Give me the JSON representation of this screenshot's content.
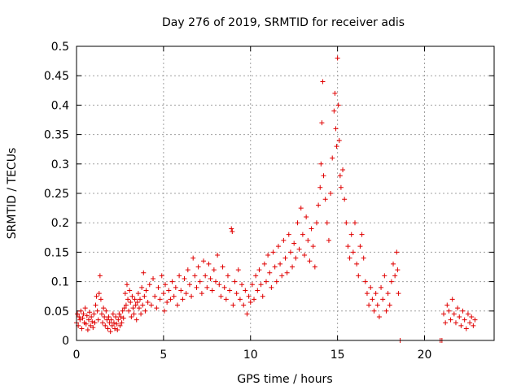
{
  "chart_data": {
    "type": "scatter",
    "title": "Day 276 of 2019, SRMTID for receiver adis",
    "xlabel": "GPS time / hours",
    "ylabel": "SRMTID / TECUs",
    "xlim": [
      0,
      24
    ],
    "ylim": [
      0,
      0.5
    ],
    "x_ticks": [
      0,
      5,
      10,
      15,
      20
    ],
    "x_tick_labels": [
      "0",
      "5",
      "10",
      "15",
      "20"
    ],
    "y_ticks": [
      0,
      0.05,
      0.1,
      0.15,
      0.2,
      0.25,
      0.3,
      0.35,
      0.4,
      0.45,
      0.5
    ],
    "y_tick_labels": [
      "0",
      "0.05",
      "0.1",
      "0.15",
      "0.2",
      "0.25",
      "0.3",
      "0.35",
      "0.4",
      "0.45",
      "0.5"
    ],
    "grid": true,
    "marker": "+",
    "color": "#e00000",
    "series": [
      {
        "name": "",
        "points": [
          [
            0.0,
            0.03
          ],
          [
            0.05,
            0.045
          ],
          [
            0.1,
            0.025
          ],
          [
            0.15,
            0.04
          ],
          [
            0.2,
            0.035
          ],
          [
            0.25,
            0.05
          ],
          [
            0.3,
            0.02
          ],
          [
            0.35,
            0.038
          ],
          [
            0.4,
            0.045
          ],
          [
            0.45,
            0.03
          ],
          [
            0.5,
            0.055
          ],
          [
            0.55,
            0.028
          ],
          [
            0.6,
            0.042
          ],
          [
            0.65,
            0.018
          ],
          [
            0.7,
            0.035
          ],
          [
            0.75,
            0.048
          ],
          [
            0.8,
            0.025
          ],
          [
            0.85,
            0.04
          ],
          [
            0.9,
            0.032
          ],
          [
            0.95,
            0.022
          ],
          [
            1.0,
            0.045
          ],
          [
            1.05,
            0.03
          ],
          [
            1.1,
            0.06
          ],
          [
            1.15,
            0.075
          ],
          [
            1.2,
            0.05
          ],
          [
            1.25,
            0.035
          ],
          [
            1.3,
            0.08
          ],
          [
            1.35,
            0.11
          ],
          [
            1.4,
            0.07
          ],
          [
            1.45,
            0.045
          ],
          [
            1.5,
            0.03
          ],
          [
            1.55,
            0.055
          ],
          [
            1.6,
            0.04
          ],
          [
            1.65,
            0.025
          ],
          [
            1.7,
            0.05
          ],
          [
            1.75,
            0.035
          ],
          [
            1.8,
            0.02
          ],
          [
            1.85,
            0.04
          ],
          [
            1.9,
            0.03
          ],
          [
            1.95,
            0.015
          ],
          [
            2.0,
            0.035
          ],
          [
            2.05,
            0.025
          ],
          [
            2.1,
            0.045
          ],
          [
            2.15,
            0.03
          ],
          [
            2.2,
            0.02
          ],
          [
            2.25,
            0.04
          ],
          [
            2.3,
            0.028
          ],
          [
            2.35,
            0.018
          ],
          [
            2.4,
            0.035
          ],
          [
            2.45,
            0.045
          ],
          [
            2.5,
            0.025
          ],
          [
            2.55,
            0.04
          ],
          [
            2.6,
            0.03
          ],
          [
            2.65,
            0.05
          ],
          [
            2.7,
            0.038
          ],
          [
            2.75,
            0.055
          ],
          [
            2.8,
            0.08
          ],
          [
            2.85,
            0.06
          ],
          [
            2.9,
            0.095
          ],
          [
            2.95,
            0.07
          ],
          [
            3.0,
            0.05
          ],
          [
            3.05,
            0.085
          ],
          [
            3.1,
            0.065
          ],
          [
            3.15,
            0.04
          ],
          [
            3.2,
            0.075
          ],
          [
            3.25,
            0.055
          ],
          [
            3.3,
            0.045
          ],
          [
            3.35,
            0.07
          ],
          [
            3.4,
            0.06
          ],
          [
            3.45,
            0.035
          ],
          [
            3.5,
            0.065
          ],
          [
            3.55,
            0.08
          ],
          [
            3.6,
            0.055
          ],
          [
            3.65,
            0.07
          ],
          [
            3.7,
            0.045
          ],
          [
            3.75,
            0.09
          ],
          [
            3.8,
            0.06
          ],
          [
            3.85,
            0.115
          ],
          [
            3.9,
            0.075
          ],
          [
            3.95,
            0.05
          ],
          [
            4.0,
            0.085
          ],
          [
            4.1,
            0.065
          ],
          [
            4.2,
            0.095
          ],
          [
            4.3,
            0.06
          ],
          [
            4.4,
            0.105
          ],
          [
            4.5,
            0.075
          ],
          [
            4.6,
            0.055
          ],
          [
            4.7,
            0.09
          ],
          [
            4.8,
            0.07
          ],
          [
            4.9,
            0.11
          ],
          [
            5.0,
            0.08
          ],
          [
            5.05,
            0.05
          ],
          [
            5.1,
            0.095
          ],
          [
            5.2,
            0.065
          ],
          [
            5.3,
            0.085
          ],
          [
            5.4,
            0.07
          ],
          [
            5.5,
            0.1
          ],
          [
            5.6,
            0.075
          ],
          [
            5.7,
            0.09
          ],
          [
            5.8,
            0.06
          ],
          [
            5.9,
            0.11
          ],
          [
            6.0,
            0.085
          ],
          [
            6.1,
            0.07
          ],
          [
            6.2,
            0.105
          ],
          [
            6.3,
            0.08
          ],
          [
            6.4,
            0.12
          ],
          [
            6.5,
            0.095
          ],
          [
            6.6,
            0.075
          ],
          [
            6.7,
            0.14
          ],
          [
            6.8,
            0.11
          ],
          [
            6.9,
            0.09
          ],
          [
            7.0,
            0.125
          ],
          [
            7.1,
            0.1
          ],
          [
            7.2,
            0.08
          ],
          [
            7.3,
            0.135
          ],
          [
            7.4,
            0.11
          ],
          [
            7.5,
            0.09
          ],
          [
            7.6,
            0.13
          ],
          [
            7.7,
            0.105
          ],
          [
            7.8,
            0.085
          ],
          [
            7.9,
            0.12
          ],
          [
            8.0,
            0.1
          ],
          [
            8.1,
            0.145
          ],
          [
            8.2,
            0.095
          ],
          [
            8.3,
            0.075
          ],
          [
            8.4,
            0.125
          ],
          [
            8.5,
            0.09
          ],
          [
            8.6,
            0.07
          ],
          [
            8.7,
            0.11
          ],
          [
            8.8,
            0.085
          ],
          [
            8.9,
            0.19
          ],
          [
            8.95,
            0.185
          ],
          [
            9.0,
            0.06
          ],
          [
            9.1,
            0.1
          ],
          [
            9.2,
            0.08
          ],
          [
            9.3,
            0.12
          ],
          [
            9.4,
            0.07
          ],
          [
            9.5,
            0.095
          ],
          [
            9.6,
            0.06
          ],
          [
            9.7,
            0.085
          ],
          [
            9.8,
            0.045
          ],
          [
            9.9,
            0.075
          ],
          [
            10.0,
            0.065
          ],
          [
            10.1,
            0.095
          ],
          [
            10.2,
            0.07
          ],
          [
            10.3,
            0.11
          ],
          [
            10.4,
            0.085
          ],
          [
            10.5,
            0.12
          ],
          [
            10.6,
            0.095
          ],
          [
            10.7,
            0.075
          ],
          [
            10.8,
            0.13
          ],
          [
            10.9,
            0.1
          ],
          [
            11.0,
            0.145
          ],
          [
            11.1,
            0.115
          ],
          [
            11.2,
            0.09
          ],
          [
            11.3,
            0.15
          ],
          [
            11.4,
            0.125
          ],
          [
            11.5,
            0.1
          ],
          [
            11.6,
            0.16
          ],
          [
            11.7,
            0.13
          ],
          [
            11.8,
            0.11
          ],
          [
            11.9,
            0.17
          ],
          [
            12.0,
            0.14
          ],
          [
            12.1,
            0.115
          ],
          [
            12.2,
            0.18
          ],
          [
            12.3,
            0.15
          ],
          [
            12.4,
            0.125
          ],
          [
            12.5,
            0.165
          ],
          [
            12.6,
            0.14
          ],
          [
            12.7,
            0.2
          ],
          [
            12.8,
            0.155
          ],
          [
            12.9,
            0.225
          ],
          [
            13.0,
            0.18
          ],
          [
            13.1,
            0.145
          ],
          [
            13.2,
            0.21
          ],
          [
            13.3,
            0.17
          ],
          [
            13.4,
            0.135
          ],
          [
            13.5,
            0.19
          ],
          [
            13.6,
            0.16
          ],
          [
            13.7,
            0.125
          ],
          [
            13.8,
            0.2
          ],
          [
            13.9,
            0.23
          ],
          [
            14.0,
            0.26
          ],
          [
            14.05,
            0.3
          ],
          [
            14.1,
            0.37
          ],
          [
            14.15,
            0.44
          ],
          [
            14.2,
            0.28
          ],
          [
            14.3,
            0.24
          ],
          [
            14.4,
            0.2
          ],
          [
            14.5,
            0.17
          ],
          [
            14.6,
            0.25
          ],
          [
            14.7,
            0.31
          ],
          [
            14.8,
            0.39
          ],
          [
            14.85,
            0.42
          ],
          [
            14.9,
            0.36
          ],
          [
            14.95,
            0.33
          ],
          [
            15.0,
            0.48
          ],
          [
            15.05,
            0.4
          ],
          [
            15.1,
            0.34
          ],
          [
            15.15,
            0.28
          ],
          [
            15.2,
            0.26
          ],
          [
            15.3,
            0.29
          ],
          [
            15.4,
            0.24
          ],
          [
            15.5,
            0.2
          ],
          [
            15.6,
            0.16
          ],
          [
            15.7,
            0.14
          ],
          [
            15.8,
            0.18
          ],
          [
            15.9,
            0.15
          ],
          [
            16.0,
            0.2
          ],
          [
            16.1,
            0.13
          ],
          [
            16.2,
            0.11
          ],
          [
            16.3,
            0.16
          ],
          [
            16.4,
            0.18
          ],
          [
            16.5,
            0.14
          ],
          [
            16.6,
            0.1
          ],
          [
            16.7,
            0.08
          ],
          [
            16.8,
            0.06
          ],
          [
            16.9,
            0.09
          ],
          [
            17.0,
            0.07
          ],
          [
            17.1,
            0.05
          ],
          [
            17.2,
            0.08
          ],
          [
            17.3,
            0.06
          ],
          [
            17.4,
            0.04
          ],
          [
            17.5,
            0.09
          ],
          [
            17.6,
            0.07
          ],
          [
            17.7,
            0.11
          ],
          [
            17.8,
            0.05
          ],
          [
            17.9,
            0.08
          ],
          [
            18.0,
            0.06
          ],
          [
            18.1,
            0.1
          ],
          [
            18.2,
            0.13
          ],
          [
            18.3,
            0.11
          ],
          [
            18.4,
            0.15
          ],
          [
            18.45,
            0.12
          ],
          [
            18.5,
            0.08
          ],
          [
            18.6,
            0.0
          ],
          [
            20.9,
            0.0
          ],
          [
            21.0,
            0.0
          ],
          [
            21.1,
            0.045
          ],
          [
            21.2,
            0.03
          ],
          [
            21.3,
            0.06
          ],
          [
            21.4,
            0.05
          ],
          [
            21.5,
            0.035
          ],
          [
            21.6,
            0.07
          ],
          [
            21.7,
            0.045
          ],
          [
            21.8,
            0.03
          ],
          [
            21.9,
            0.055
          ],
          [
            22.0,
            0.04
          ],
          [
            22.1,
            0.025
          ],
          [
            22.2,
            0.05
          ],
          [
            22.3,
            0.035
          ],
          [
            22.4,
            0.02
          ],
          [
            22.5,
            0.045
          ],
          [
            22.6,
            0.03
          ],
          [
            22.7,
            0.04
          ],
          [
            22.8,
            0.025
          ],
          [
            22.9,
            0.035
          ]
        ]
      }
    ]
  }
}
